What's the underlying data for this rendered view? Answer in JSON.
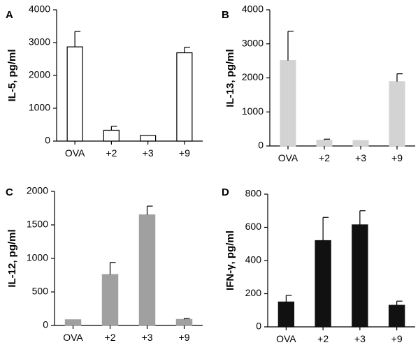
{
  "chart_data": [
    {
      "panel": "A",
      "type": "bar",
      "ylabel": "IL-5, pg/ml",
      "categories": [
        "OVA",
        "+2",
        "+3",
        "+9"
      ],
      "values": [
        2870,
        330,
        170,
        2690
      ],
      "errors": [
        470,
        120,
        0,
        170
      ],
      "ylim": [
        0,
        4000
      ],
      "yticks": [
        "0",
        "1000",
        "2000",
        "3000",
        "4000"
      ],
      "bar_color": "#ffffff",
      "bar_stroke": "#000000"
    },
    {
      "panel": "B",
      "type": "bar",
      "ylabel": "IL-13, pg/ml",
      "categories": [
        "OVA",
        "+2",
        "+3",
        "+9"
      ],
      "values": [
        2510,
        170,
        160,
        1890
      ],
      "errors": [
        860,
        30,
        0,
        230
      ],
      "ylim": [
        0,
        4000
      ],
      "yticks": [
        "0",
        "1000",
        "2000",
        "3000",
        "4000"
      ],
      "bar_color": "#d3d3d3",
      "bar_stroke": "#d3d3d3"
    },
    {
      "panel": "C",
      "type": "bar",
      "ylabel": "IL-12, pg/ml",
      "categories": [
        "OVA",
        "+2",
        "+3",
        "+9"
      ],
      "values": [
        85,
        760,
        1650,
        90
      ],
      "errors": [
        0,
        180,
        130,
        15
      ],
      "ylim": [
        0,
        2000
      ],
      "yticks": [
        "0",
        "500",
        "1000",
        "1500",
        "2000"
      ],
      "bar_color": "#a0a0a0",
      "bar_stroke": "#a0a0a0"
    },
    {
      "panel": "D",
      "type": "bar",
      "ylabel": "IFN-γ, pg/ml",
      "categories": [
        "OVA",
        "+2",
        "+3",
        "+9"
      ],
      "values": [
        150,
        520,
        615,
        130
      ],
      "errors": [
        40,
        140,
        85,
        25
      ],
      "ylim": [
        0,
        800
      ],
      "yticks": [
        "0",
        "200",
        "400",
        "600",
        "800"
      ],
      "bar_color": "#111111",
      "bar_stroke": "#111111"
    }
  ]
}
